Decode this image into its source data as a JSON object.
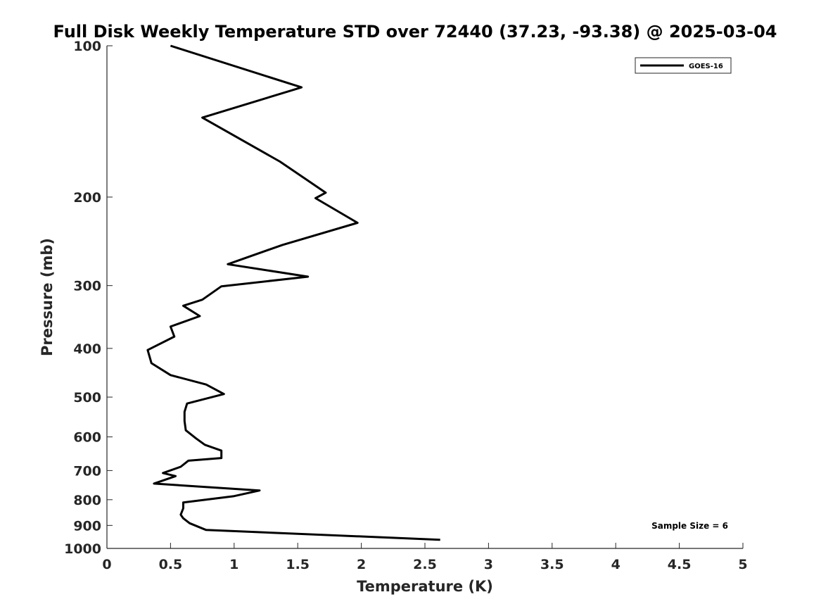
{
  "chart_data": {
    "type": "line",
    "title": "Full Disk Weekly Temperature STD over 72440 (37.23, -93.38) @ 2025-03-04",
    "xlabel": "Temperature (K)",
    "ylabel": "Pressure (mb)",
    "xlim": [
      0,
      5
    ],
    "ylim": [
      100,
      1000
    ],
    "y_scale": "log",
    "y_reversed": true,
    "xticks": [
      "0",
      "0.5",
      "1",
      "1.5",
      "2",
      "2.5",
      "3",
      "3.5",
      "4",
      "4.5",
      "5"
    ],
    "yticks": [
      "100",
      "200",
      "300",
      "400",
      "500",
      "600",
      "700",
      "800",
      "900",
      "1000"
    ],
    "grid": false,
    "legend_position": "top-right",
    "series": [
      {
        "name": "GOES-16",
        "color": "#000000",
        "x": [
          0.5,
          1.53,
          0.75,
          1.36,
          1.72,
          1.64,
          1.97,
          1.38,
          0.95,
          1.58,
          0.9,
          0.75,
          0.6,
          0.73,
          0.5,
          0.53,
          0.32,
          0.35,
          0.5,
          0.78,
          0.92,
          0.63,
          0.61,
          0.61,
          0.62,
          0.7,
          0.77,
          0.9,
          0.9,
          0.64,
          0.58,
          0.44,
          0.54,
          0.37,
          1.2,
          1.0,
          0.6,
          0.6,
          0.58,
          0.6,
          0.65,
          0.78,
          2.62
        ],
        "y": [
          100,
          121,
          139,
          170,
          196,
          201,
          225,
          249,
          272,
          288,
          301,
          320,
          329,
          345,
          362,
          379,
          403,
          428,
          452,
          472,
          493,
          515,
          535,
          558,
          582,
          604,
          622,
          639,
          661,
          669,
          688,
          708,
          718,
          743,
          767,
          787,
          810,
          832,
          857,
          871,
          891,
          919,
          961
        ]
      }
    ],
    "annotation": "Sample Size = 6"
  }
}
